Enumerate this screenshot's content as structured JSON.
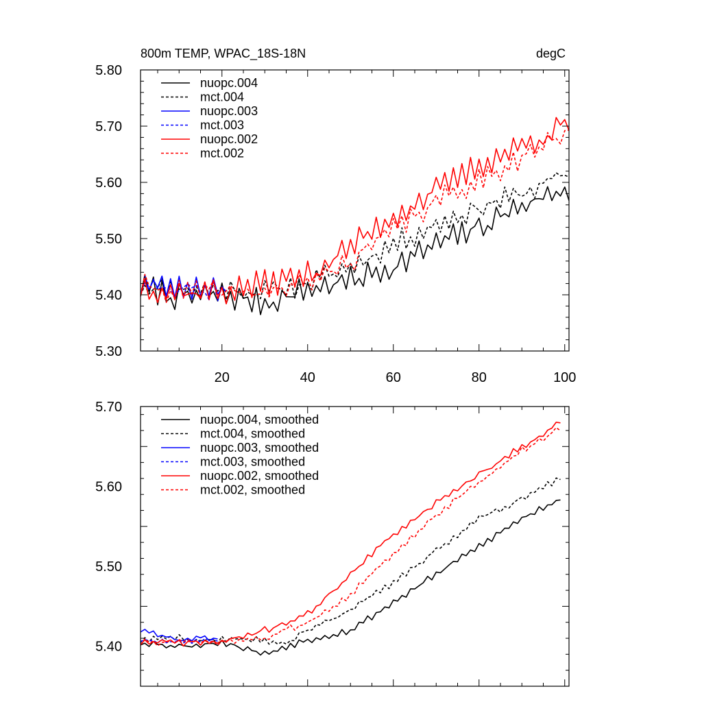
{
  "chart_data": [
    {
      "type": "line",
      "title": "800m TEMP, WPAC_18S-18N",
      "units": "degC",
      "xlabel": "",
      "ylabel": "",
      "xlim": [
        1,
        101
      ],
      "ylim": [
        5.3,
        5.8
      ],
      "xticks": [
        20,
        40,
        60,
        80,
        100
      ],
      "xtick_labels": [
        "20",
        "40",
        "60",
        "80",
        "100"
      ],
      "yticks": [
        5.3,
        5.4,
        5.5,
        5.6,
        5.7,
        5.8
      ],
      "ytick_labels": [
        "5.30",
        "5.40",
        "5.50",
        "5.60",
        "5.70",
        "5.80"
      ],
      "legend_position": "top-left",
      "series": [
        {
          "name": "nuopc.004",
          "color": "#000000",
          "dash": "solid",
          "x_start": 1,
          "x_end": 101,
          "start": 5.415,
          "end": 5.58,
          "flat_until": 30,
          "base_min": 5.395,
          "amplitude": 0.016,
          "seed": 7,
          "anchors": [
            [
              1,
              5.415
            ],
            [
              10,
              5.395
            ],
            [
              20,
              5.4
            ],
            [
              30,
              5.385
            ],
            [
              40,
              5.41
            ],
            [
              50,
              5.425
            ],
            [
              60,
              5.45
            ],
            [
              70,
              5.49
            ],
            [
              80,
              5.52
            ],
            [
              90,
              5.56
            ],
            [
              101,
              5.59
            ]
          ]
        },
        {
          "name": "mct.004",
          "color": "#000000",
          "dash": "dashed",
          "x_start": 1,
          "x_end": 101,
          "start": 5.415,
          "end": 5.63,
          "seed": 11,
          "amplitude": 0.014,
          "anchors": [
            [
              1,
              5.415
            ],
            [
              10,
              5.41
            ],
            [
              20,
              5.41
            ],
            [
              30,
              5.405
            ],
            [
              40,
              5.42
            ],
            [
              50,
              5.45
            ],
            [
              60,
              5.49
            ],
            [
              70,
              5.525
            ],
            [
              80,
              5.555
            ],
            [
              90,
              5.58
            ],
            [
              101,
              5.615
            ]
          ]
        },
        {
          "name": "nuopc.003",
          "color": "#0000ff",
          "dash": "solid",
          "x_start": 1,
          "x_end": 21,
          "start": 5.415,
          "end": 5.42,
          "seed": 23,
          "amplitude": 0.015,
          "anchors": [
            [
              1,
              5.418
            ],
            [
              10,
              5.412
            ],
            [
              21,
              5.418
            ]
          ]
        },
        {
          "name": "mct.003",
          "color": "#0000ff",
          "dash": "dashed",
          "x_start": 1,
          "x_end": 21,
          "start": 5.415,
          "end": 5.41,
          "seed": 29,
          "amplitude": 0.014,
          "anchors": [
            [
              1,
              5.415
            ],
            [
              10,
              5.408
            ],
            [
              21,
              5.41
            ]
          ]
        },
        {
          "name": "nuopc.002",
          "color": "#ff0000",
          "dash": "solid",
          "x_start": 1,
          "x_end": 101,
          "start": 5.415,
          "end": 5.7,
          "seed": 37,
          "amplitude": 0.016,
          "anchors": [
            [
              1,
              5.415
            ],
            [
              10,
              5.405
            ],
            [
              20,
              5.405
            ],
            [
              30,
              5.42
            ],
            [
              40,
              5.435
            ],
            [
              50,
              5.485
            ],
            [
              60,
              5.54
            ],
            [
              70,
              5.585
            ],
            [
              80,
              5.63
            ],
            [
              90,
              5.665
            ],
            [
              101,
              5.705
            ]
          ]
        },
        {
          "name": "mct.002",
          "color": "#ff0000",
          "dash": "dashed",
          "x_start": 1,
          "x_end": 101,
          "start": 5.415,
          "end": 5.69,
          "seed": 41,
          "amplitude": 0.014,
          "anchors": [
            [
              1,
              5.415
            ],
            [
              10,
              5.405
            ],
            [
              20,
              5.405
            ],
            [
              30,
              5.405
            ],
            [
              40,
              5.42
            ],
            [
              50,
              5.46
            ],
            [
              60,
              5.515
            ],
            [
              70,
              5.565
            ],
            [
              80,
              5.605
            ],
            [
              90,
              5.645
            ],
            [
              101,
              5.69
            ]
          ]
        }
      ]
    },
    {
      "type": "line",
      "title": "",
      "xlabel": "",
      "ylabel": "",
      "xlim": [
        1,
        101
      ],
      "ylim": [
        5.35,
        5.7
      ],
      "xticks": [
        20,
        40,
        60,
        80,
        100
      ],
      "xtick_labels": [],
      "yticks": [
        5.4,
        5.5,
        5.6,
        5.7
      ],
      "ytick_labels": [
        "5.40",
        "5.50",
        "5.60",
        "5.70"
      ],
      "legend_position": "top-left",
      "series": [
        {
          "name": "nuopc.004, smoothed",
          "color": "#000000",
          "dash": "solid",
          "x_start": 1,
          "x_end": 99,
          "seed": 53,
          "amplitude": 0.003,
          "anchors": [
            [
              1,
              5.405
            ],
            [
              10,
              5.4
            ],
            [
              20,
              5.405
            ],
            [
              25,
              5.398
            ],
            [
              30,
              5.39
            ],
            [
              35,
              5.4
            ],
            [
              40,
              5.408
            ],
            [
              50,
              5.42
            ],
            [
              60,
              5.455
            ],
            [
              70,
              5.49
            ],
            [
              80,
              5.525
            ],
            [
              90,
              5.56
            ],
            [
              99,
              5.585
            ]
          ]
        },
        {
          "name": "mct.004, smoothed",
          "color": "#000000",
          "dash": "dashed",
          "x_start": 1,
          "x_end": 99,
          "seed": 59,
          "amplitude": 0.003,
          "anchors": [
            [
              1,
              5.408
            ],
            [
              10,
              5.41
            ],
            [
              20,
              5.408
            ],
            [
              30,
              5.408
            ],
            [
              35,
              5.405
            ],
            [
              40,
              5.42
            ],
            [
              50,
              5.445
            ],
            [
              60,
              5.48
            ],
            [
              70,
              5.52
            ],
            [
              80,
              5.56
            ],
            [
              90,
              5.585
            ],
            [
              99,
              5.61
            ]
          ]
        },
        {
          "name": "nuopc.003, smoothed",
          "color": "#0000ff",
          "dash": "solid",
          "x_start": 1,
          "x_end": 19,
          "seed": 61,
          "amplitude": 0.002,
          "anchors": [
            [
              1,
              5.42
            ],
            [
              5,
              5.415
            ],
            [
              10,
              5.408
            ],
            [
              15,
              5.41
            ],
            [
              19,
              5.41
            ]
          ]
        },
        {
          "name": "mct.003, smoothed",
          "color": "#0000ff",
          "dash": "dashed",
          "x_start": 1,
          "x_end": 19,
          "seed": 67,
          "amplitude": 0.002,
          "anchors": [
            [
              1,
              5.408
            ],
            [
              10,
              5.406
            ],
            [
              19,
              5.408
            ]
          ]
        },
        {
          "name": "nuopc.002, smoothed",
          "color": "#ff0000",
          "dash": "solid",
          "x_start": 1,
          "x_end": 99,
          "seed": 71,
          "amplitude": 0.003,
          "anchors": [
            [
              1,
              5.405
            ],
            [
              10,
              5.405
            ],
            [
              20,
              5.405
            ],
            [
              30,
              5.42
            ],
            [
              40,
              5.44
            ],
            [
              50,
              5.49
            ],
            [
              60,
              5.54
            ],
            [
              70,
              5.58
            ],
            [
              80,
              5.615
            ],
            [
              90,
              5.65
            ],
            [
              99,
              5.68
            ]
          ]
        },
        {
          "name": "mct.002, smoothed",
          "color": "#ff0000",
          "dash": "dashed",
          "x_start": 1,
          "x_end": 99,
          "seed": 73,
          "amplitude": 0.003,
          "anchors": [
            [
              1,
              5.405
            ],
            [
              10,
              5.405
            ],
            [
              20,
              5.405
            ],
            [
              30,
              5.41
            ],
            [
              40,
              5.43
            ],
            [
              50,
              5.465
            ],
            [
              60,
              5.515
            ],
            [
              70,
              5.565
            ],
            [
              80,
              5.605
            ],
            [
              90,
              5.645
            ],
            [
              99,
              5.672
            ]
          ]
        }
      ]
    }
  ]
}
